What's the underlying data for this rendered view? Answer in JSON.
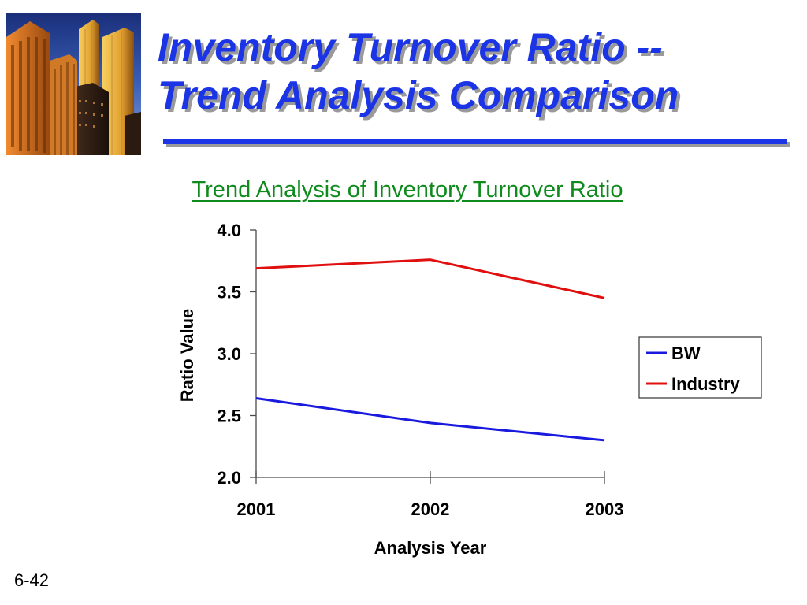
{
  "slide": {
    "title_line1": "Inventory Turnover Ratio --",
    "title_line2": "Trend Analysis Comparison",
    "slide_number": "6-42",
    "title_color": "#1b35e6",
    "image_icon": "city-skyscrapers-photo"
  },
  "chart_data": {
    "type": "line",
    "title": "Trend Analysis of Inventory Turnover Ratio",
    "xlabel": "Analysis Year",
    "ylabel": "Ratio Value",
    "categories": [
      "2001",
      "2002",
      "2003"
    ],
    "ylim": [
      2.0,
      4.0
    ],
    "yticks": [
      "2.0",
      "2.5",
      "3.0",
      "3.5",
      "4.0"
    ],
    "series": [
      {
        "name": "BW",
        "color": "#1a1adf",
        "values": [
          2.64,
          2.44,
          2.3
        ]
      },
      {
        "name": "Industry",
        "color": "#e01010",
        "values": [
          3.69,
          3.76,
          3.45
        ]
      }
    ],
    "legend_position": "right",
    "grid": false
  }
}
